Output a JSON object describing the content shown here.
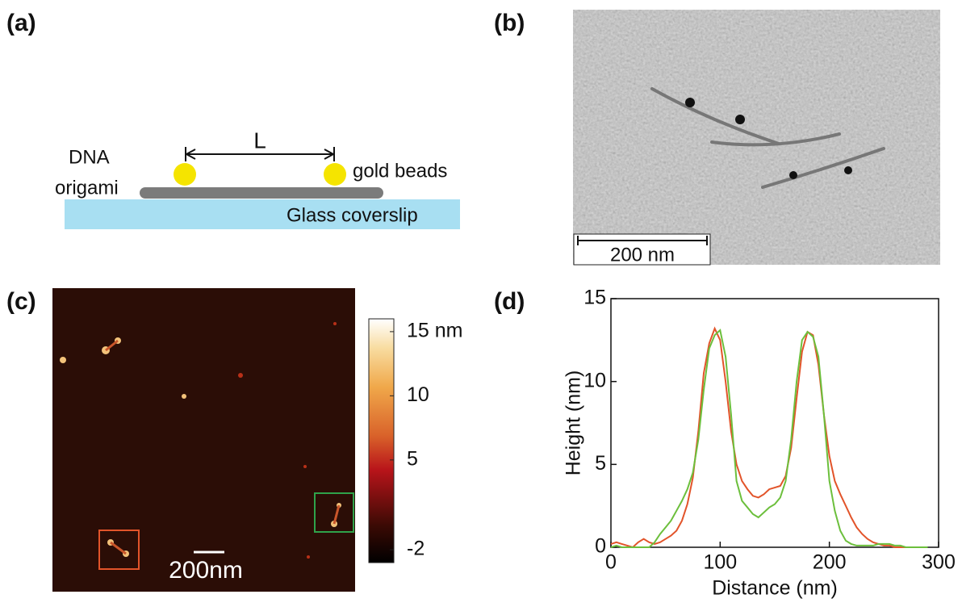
{
  "panels": {
    "a": "(a)",
    "b": "(b)",
    "c": "(c)",
    "d": "(d)"
  },
  "schematic": {
    "length_label": "L",
    "origami_label": [
      "DNA",
      "origami"
    ],
    "beads_label": "gold beads",
    "substrate_label": "Glass coverslip"
  },
  "tem_image": {
    "scale_bar": "200 nm"
  },
  "afm_image": {
    "scale_bar": "200nm",
    "colorbar": {
      "lim": [
        -3,
        16
      ],
      "ticks": [
        {
          "value": 15,
          "label": "15 nm"
        },
        10,
        5,
        -2
      ]
    }
  },
  "chart_data": {
    "type": "line",
    "xlabel": "Distance (nm)",
    "ylabel": "Height (nm)",
    "x": [
      0,
      5,
      10,
      15,
      20,
      25,
      30,
      35,
      40,
      45,
      50,
      55,
      60,
      65,
      70,
      75,
      80,
      85,
      90,
      95,
      100,
      105,
      110,
      115,
      120,
      125,
      130,
      135,
      140,
      145,
      150,
      155,
      160,
      165,
      170,
      175,
      180,
      185,
      190,
      195,
      200,
      205,
      210,
      215,
      220,
      225,
      230,
      235,
      240,
      245,
      250,
      255,
      260,
      265,
      270,
      275,
      280,
      285,
      290
    ],
    "series": [
      {
        "color": "#e2542a",
        "values": [
          0.2,
          0.3,
          0.2,
          0.1,
          0,
          0.3,
          0.5,
          0.3,
          0.2,
          0.3,
          0.5,
          0.7,
          1.0,
          1.6,
          2.6,
          4.2,
          7.0,
          10.5,
          12.3,
          13.2,
          12.5,
          10.0,
          7.0,
          5.0,
          4.0,
          3.5,
          3.1,
          3.0,
          3.2,
          3.5,
          3.6,
          3.7,
          4.3,
          6.0,
          9.0,
          11.8,
          13.0,
          12.8,
          11.0,
          8.0,
          5.5,
          4.0,
          3.2,
          2.5,
          1.8,
          1.2,
          0.8,
          0.5,
          0.3,
          0.2,
          0.1,
          0.1,
          0,
          0,
          0,
          0,
          0,
          0,
          0
        ]
      },
      {
        "color": "#6cbf3c",
        "values": [
          0,
          0.1,
          0,
          0,
          0,
          0,
          0,
          0,
          0.3,
          0.8,
          1.2,
          1.6,
          2.2,
          2.8,
          3.5,
          4.5,
          6.5,
          9.5,
          12.0,
          12.8,
          13.1,
          11.5,
          8.0,
          4.0,
          2.8,
          2.4,
          2.0,
          1.8,
          2.1,
          2.4,
          2.6,
          3.0,
          4.0,
          6.5,
          10.0,
          12.5,
          13.0,
          12.7,
          11.5,
          8.0,
          4.0,
          2.2,
          1.0,
          0.4,
          0.2,
          0.1,
          0.1,
          0.1,
          0.1,
          0.2,
          0.2,
          0.2,
          0.1,
          0.1,
          0,
          0,
          0,
          0,
          0
        ]
      }
    ],
    "xlim": [
      0,
      300
    ],
    "xticks": [
      0,
      100,
      200,
      300
    ],
    "ylim": [
      0,
      15
    ],
    "yticks": [
      0,
      5,
      10,
      15
    ]
  }
}
